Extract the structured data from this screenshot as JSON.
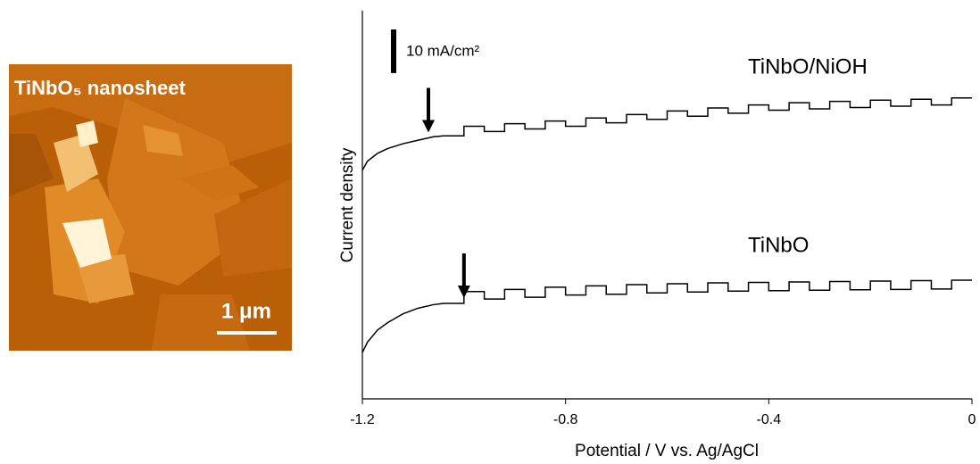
{
  "image": {
    "title": "TiNbO₅ nanosheet",
    "scale_bar": "1 μm"
  },
  "chart_data": {
    "type": "line",
    "xlabel": "Potential / V vs. Ag/AgCl",
    "ylabel": "Current density",
    "xlim": [
      -1.2,
      0
    ],
    "xticks": [
      -1.2,
      -0.8,
      -0.4,
      0
    ],
    "ylim": [
      0,
      89
    ],
    "scale_bar": {
      "label": "10 mA/cm²",
      "value": 10
    },
    "x": [
      -1.2,
      -1.19,
      -1.17,
      -1.15,
      -1.12,
      -1.09,
      -1.06,
      -1.04,
      -1.0,
      -1.0,
      -0.96,
      -0.96,
      -0.92,
      -0.92,
      -0.88,
      -0.88,
      -0.84,
      -0.84,
      -0.8,
      -0.8,
      -0.76,
      -0.76,
      -0.72,
      -0.72,
      -0.68,
      -0.68,
      -0.64,
      -0.64,
      -0.6,
      -0.6,
      -0.56,
      -0.56,
      -0.52,
      -0.52,
      -0.48,
      -0.48,
      -0.44,
      -0.44,
      -0.4,
      -0.4,
      -0.36,
      -0.36,
      -0.32,
      -0.32,
      -0.28,
      -0.28,
      -0.24,
      -0.24,
      -0.2,
      -0.2,
      -0.16,
      -0.16,
      -0.12,
      -0.12,
      -0.08,
      -0.08,
      -0.04,
      -0.04,
      0
    ],
    "series": [
      {
        "name": "TiNbO/NiOH",
        "color": "#000000",
        "arrow_x": -1.07,
        "values": [
          52.4,
          54.5,
          56.3,
          57.4,
          58.5,
          59.3,
          60.1,
          60.3,
          60.3,
          62.5,
          62.5,
          61.3,
          61.3,
          63.1,
          63.1,
          61.9,
          61.9,
          63.7,
          63.7,
          62.5,
          62.5,
          64.4,
          64.4,
          63.3,
          63.3,
          65.2,
          65.2,
          64.1,
          64.1,
          66.0,
          66.0,
          64.8,
          64.8,
          66.7,
          66.7,
          65.5,
          65.5,
          67.4,
          67.4,
          66.2,
          66.2,
          67.9,
          67.9,
          66.5,
          66.5,
          68.2,
          68.2,
          66.8,
          66.8,
          68.5,
          68.5,
          67.1,
          67.1,
          68.7,
          68.7,
          67.4,
          67.4,
          69.0,
          69.0
        ]
      },
      {
        "name": "TiNbO",
        "color": "#000000",
        "arrow_x": -1.0,
        "values": [
          10.6,
          13.0,
          15.8,
          17.5,
          19.5,
          20.8,
          21.6,
          21.9,
          21.9,
          24.6,
          24.6,
          22.9,
          22.9,
          25.1,
          25.1,
          23.3,
          23.3,
          25.6,
          25.6,
          23.8,
          23.8,
          25.9,
          25.9,
          24.0,
          24.0,
          26.2,
          26.2,
          24.3,
          24.3,
          26.4,
          26.4,
          24.5,
          24.5,
          26.6,
          26.6,
          24.7,
          24.7,
          26.7,
          26.7,
          24.8,
          24.8,
          26.8,
          26.8,
          24.9,
          24.9,
          26.9,
          26.9,
          25.0,
          25.0,
          27.0,
          27.0,
          25.1,
          25.1,
          27.1,
          27.1,
          25.2,
          25.2,
          27.2,
          27.2
        ]
      }
    ]
  }
}
